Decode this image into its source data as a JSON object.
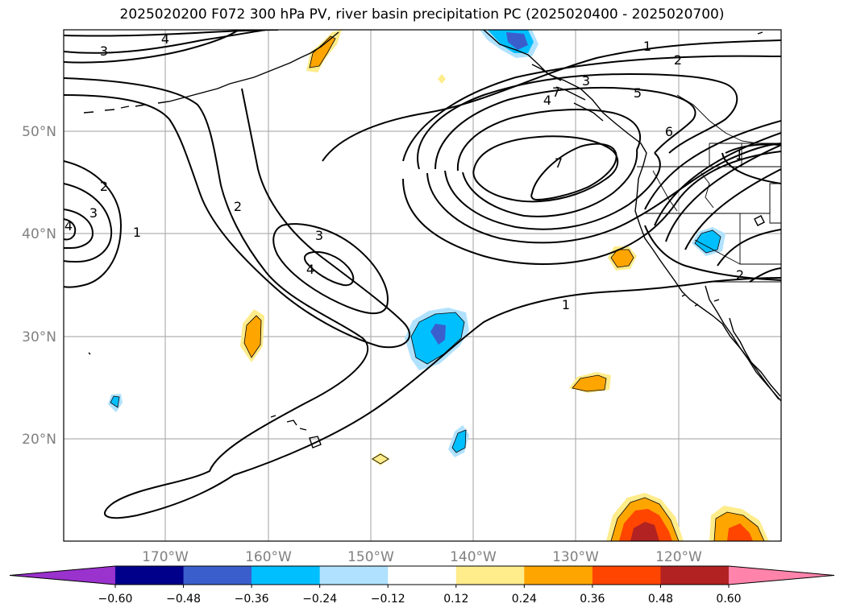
{
  "title": "2025020200 F072 300 hPa PV, river basin precipitation PC (2025020400 - 2025020700)",
  "axes": {
    "lon_labels": [
      "170°W",
      "160°W",
      "150°W",
      "140°W",
      "130°W",
      "120°W"
    ],
    "lat_labels": [
      "50°N",
      "40°N",
      "30°N",
      "20°N"
    ]
  },
  "colorbar": {
    "ticks": [
      "−0.60",
      "−0.48",
      "−0.36",
      "−0.24",
      "−0.12",
      "0.12",
      "0.24",
      "0.36",
      "0.48",
      "0.60"
    ],
    "colors": [
      "#9a32cd",
      "#00008b",
      "#3a5fcd",
      "#00bfff",
      "#b0e2ff",
      "#ffffff",
      "#ffec8b",
      "#ffa500",
      "#ff4500",
      "#b22222",
      "#ff83ab"
    ]
  },
  "contour_labels": {
    "c4_top": "4",
    "c3_topleft": "3",
    "c2_left": "2",
    "c3_left": "3",
    "c4_left": "4",
    "c1_left": "1",
    "c2_mid": "2",
    "c3_mid": "3",
    "c4_mid": "4",
    "c1_ne": "1",
    "c2_ne": "2",
    "c3_ne": "3",
    "c4_ne": "4",
    "c5_ne": "5",
    "c6_ne": "6",
    "c7_ne": "7",
    "c7_ne2": "7",
    "c1_se": "1",
    "c1_east": "1",
    "c2_east": "2"
  }
}
